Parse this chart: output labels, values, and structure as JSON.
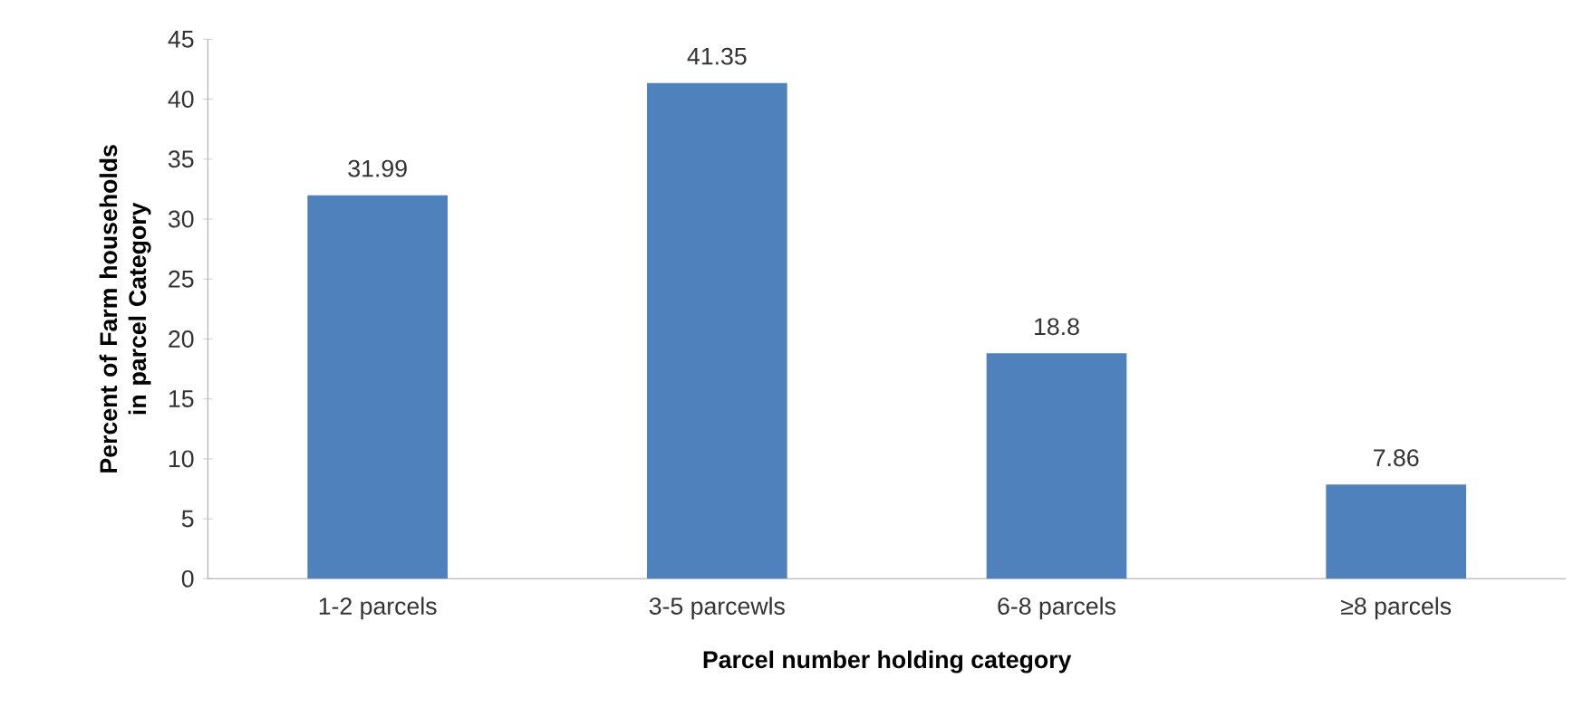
{
  "chart_data": {
    "type": "bar",
    "xlabel": "Parcel  number holding   category",
    "ylabel": "Percent of Farm households  in parcel Category",
    "categories": [
      "1-2 parcels",
      "3-5 parcewls",
      "6-8 parcels",
      "≥8 parcels"
    ],
    "values": [
      31.99,
      41.35,
      18.8,
      7.86
    ],
    "color": "#4f81bd",
    "ylim": [
      0,
      45
    ],
    "yticks": [
      0,
      5,
      10,
      15,
      20,
      25,
      30,
      35,
      40,
      45
    ],
    "data_labels": true
  }
}
